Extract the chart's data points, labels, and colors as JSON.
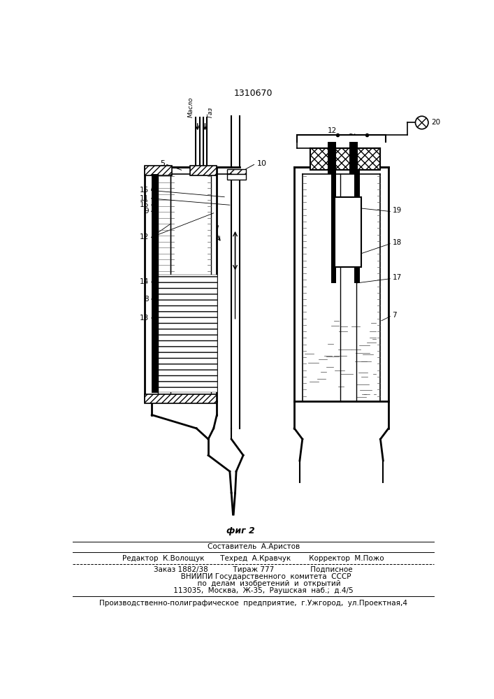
{
  "title": "1310670",
  "fig_label": "фиг 2",
  "maslo_label": "Масло",
  "gaz_label": "Газ",
  "footer_lines": [
    "Составитель  А.Аристов",
    "Редактор  К.Волощук       Техред  А.Кравчук        Корректор  М.Пожо",
    "Заказ 1882/38           Тираж 777                Подписное",
    "           ВНИИПИ Государственного  комитета  СССР",
    "              по  делам  изобретений  и  открытий",
    "         113035,  Москва,  Ж-35,  Раушская  наб.;  д.4/5",
    "Производственно-полиграфическое  предприятие,  г.Ужгород,  ул.Проектная,4"
  ],
  "background_color": "#ffffff",
  "line_color": "#000000"
}
